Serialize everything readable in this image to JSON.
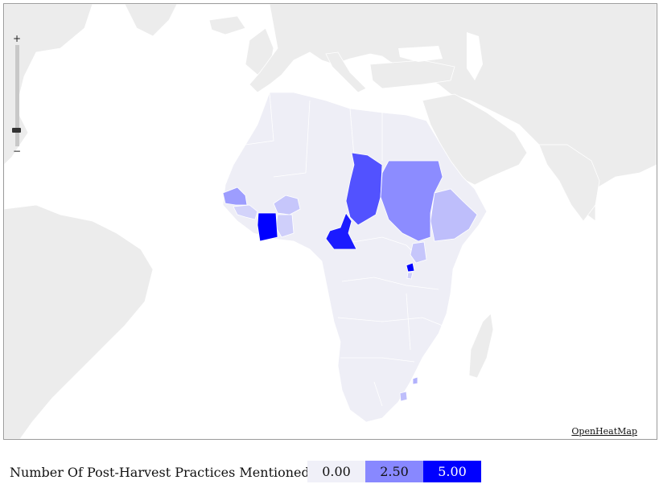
{
  "map": {
    "attribution": "OpenHeatMap",
    "zoom_in_label": "+",
    "zoom_out_label": "−"
  },
  "legend": {
    "title": "Number Of Post-Harvest Practices Mentioned",
    "stops": [
      {
        "label": "0.00",
        "color": "#f0f0f8"
      },
      {
        "label": "2.50",
        "color": "#8888ff"
      },
      {
        "label": "5.00",
        "color": "#0000ff"
      }
    ]
  },
  "colors": {
    "sea": "#ffffff",
    "land": "#ececec",
    "no_data_country": "#eeeef6"
  },
  "countries": [
    {
      "name": "Senegal",
      "value": 2.0
    },
    {
      "name": "Guinea",
      "value": 0.7
    },
    {
      "name": "Burkina Faso",
      "value": 1.0
    },
    {
      "name": "Ghana",
      "value": 0.8
    },
    {
      "name": "Côte d'Ivoire",
      "value": 5.0
    },
    {
      "name": "Chad",
      "value": 3.5
    },
    {
      "name": "Cameroon",
      "value": 4.5
    },
    {
      "name": "Sudan",
      "value": 2.4
    },
    {
      "name": "Ethiopia",
      "value": 1.2
    },
    {
      "name": "Uganda",
      "value": 1.0
    },
    {
      "name": "Rwanda",
      "value": 5.0
    },
    {
      "name": "Burundi",
      "value": 0.8
    },
    {
      "name": "Swaziland",
      "value": 1.5
    },
    {
      "name": "Lesotho",
      "value": 1.2
    }
  ]
}
